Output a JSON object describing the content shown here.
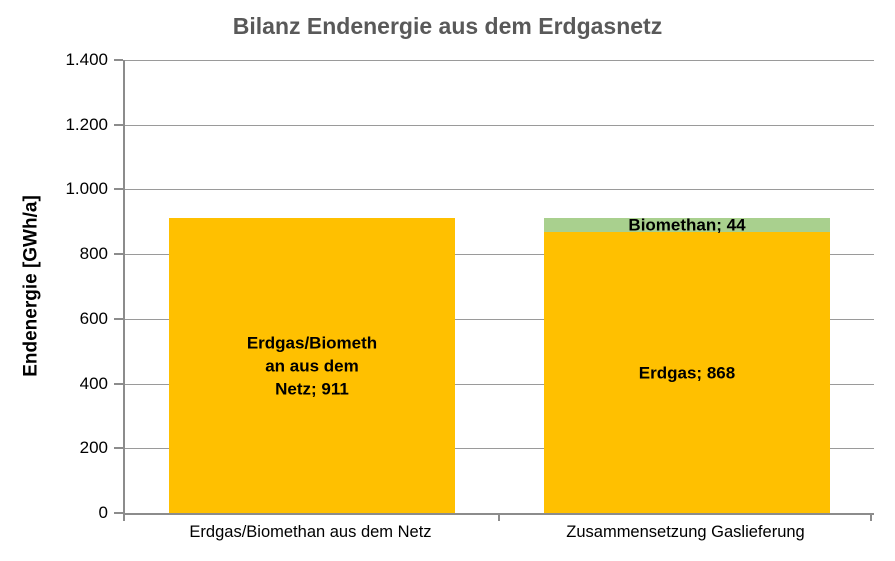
{
  "chart_data": {
    "type": "bar",
    "stacked": true,
    "title": "Bilanz Endenergie aus dem Erdgasnetz",
    "xlabel": "",
    "ylabel": "Endenergie [GWh/a]",
    "legend": "none",
    "grid": true,
    "categories": [
      "Erdgas/Biomethan aus dem Netz",
      "Zusammensetzung Gaslieferung"
    ],
    "y_axis": {
      "min": 0,
      "max": 1400,
      "step": 200,
      "tick_labels": [
        "0",
        "200",
        "400",
        "600",
        "800",
        "1.000",
        "1.200",
        "1.400"
      ]
    },
    "bars": [
      {
        "category": "Erdgas/Biomethan aus dem Netz",
        "total": 911,
        "segments": [
          {
            "name": "Erdgas/Biomethan aus dem Netz",
            "value": 911,
            "color": "#FFC000",
            "data_label": "Erdgas/Biomethan aus dem Netz; 911",
            "label_lines": [
              "Erdgas/Biometh",
              "an aus dem",
              "Netz; 911"
            ]
          }
        ]
      },
      {
        "category": "Zusammensetzung Gaslieferung",
        "total": 912,
        "segments": [
          {
            "name": "Erdgas",
            "value": 868,
            "color": "#FFC000",
            "data_label": "Erdgas; 868",
            "label_lines": [
              "Erdgas; 868"
            ]
          },
          {
            "name": "Biomethan",
            "value": 44,
            "color": "#A9D08E",
            "data_label": "Biomethan; 44",
            "label_lines": [
              "Biomethan; 44"
            ]
          }
        ]
      }
    ]
  },
  "colors": {
    "bar_yellow": "#FFC000",
    "bar_green": "#A9D08E",
    "axis": "#8C8C8C",
    "gridline": "#9A9A9A",
    "title_text": "#595959",
    "label_text": "#000000",
    "background": "#FFFFFF"
  }
}
